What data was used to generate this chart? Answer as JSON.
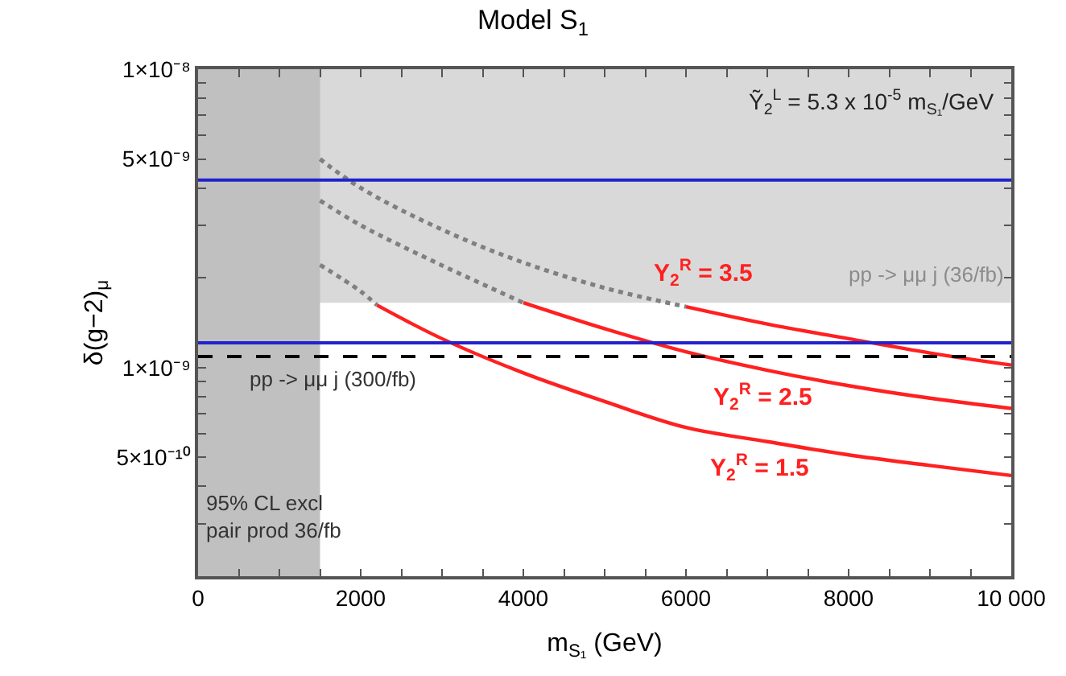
{
  "chart_data": {
    "type": "line",
    "title": "Model S$_{1}$",
    "xlabel": "m$_{S₁}$ (GeV)",
    "ylabel": "δ(g−2)$_{μ}$",
    "log": "y",
    "grid": false,
    "legend": false,
    "marker": "none",
    "xlim": [
      0,
      10000
    ],
    "ylim": [
      2e-10,
      1e-08
    ],
    "xticks": [
      0,
      {
        "value": 500,
        "label": null
      },
      {
        "value": 1000,
        "label": null
      },
      {
        "value": 1500,
        "label": null
      },
      2000,
      {
        "value": 2500,
        "label": null
      },
      {
        "value": 3000,
        "label": null
      },
      {
        "value": 3500,
        "label": null
      },
      4000,
      {
        "value": 4500,
        "label": null
      },
      {
        "value": 5000,
        "label": null
      },
      {
        "value": 5500,
        "label": null
      },
      6000,
      {
        "value": 6500,
        "label": null
      },
      {
        "value": 7000,
        "label": null
      },
      {
        "value": 7500,
        "label": null
      },
      8000,
      {
        "value": 8500,
        "label": null
      },
      {
        "value": 9000,
        "label": null
      },
      {
        "value": 9500,
        "label": null
      },
      {
        "value": 10000,
        "label": "10 000"
      }
    ],
    "yticks": [
      {
        "value": 2e-10,
        "label": null
      },
      {
        "value": 3e-10,
        "label": null
      },
      {
        "value": 4e-10,
        "label": null
      },
      {
        "value": 5e-10,
        "label": "5×10⁻¹⁰"
      },
      {
        "value": 6e-10,
        "label": null
      },
      {
        "value": 7e-10,
        "label": null
      },
      {
        "value": 8e-10,
        "label": null
      },
      {
        "value": 9e-10,
        "label": null
      },
      {
        "value": 1e-09,
        "label": "1×10⁻⁹"
      },
      {
        "value": 2e-09,
        "label": null
      },
      {
        "value": 3e-09,
        "label": null
      },
      {
        "value": 4e-09,
        "label": null
      },
      {
        "value": 5e-09,
        "label": "5×10⁻⁹"
      },
      {
        "value": 6e-09,
        "label": null
      },
      {
        "value": 7e-09,
        "label": null
      },
      {
        "value": 8e-09,
        "label": null
      },
      {
        "value": 9e-09,
        "label": null
      },
      {
        "value": 1e-08,
        "label": "1×10⁻⁸"
      }
    ],
    "bands": [
      {
        "axis": "y",
        "from": 1.65e-09,
        "to": 1e-08,
        "label": "pp -> μμ j (36/fb)",
        "color": "#d9d9d9"
      },
      {
        "axis": "x",
        "from": 0,
        "to": 1500,
        "label": "95% CL excl\npair prod 36/fb",
        "color": "#c0c0c0"
      }
    ],
    "ref_lines": [
      {
        "axis": "y",
        "value": 4.25e-09,
        "label": null,
        "color": "#2222cc",
        "line_style": "solid"
      },
      {
        "axis": "y",
        "value": 1.21e-09,
        "label": null,
        "color": "#2222cc",
        "line_style": "solid"
      },
      {
        "axis": "y",
        "value": 1.09e-09,
        "label": "pp -> μμ j (300/fb)",
        "color": "#000000",
        "line_style": "dashed"
      }
    ],
    "series": [
      {
        "color": "#808080",
        "line_style": "dotted",
        "x": [
          1500,
          2000,
          3000,
          4000,
          5000,
          6000
        ],
        "values": [
          5e-09,
          4e-09,
          2.9e-09,
          2.25e-09,
          1.85e-09,
          1.6e-09
        ]
      },
      {
        "name": "Y$_{2}$$^{R}$ = 3.5",
        "color": "#ff2020",
        "line_style": "solid",
        "x": [
          6000,
          7000,
          8000,
          9000,
          10000
        ],
        "values": [
          1.6e-09,
          1.4e-09,
          1.25e-09,
          1.12e-09,
          1.02e-09
        ]
      },
      {
        "color": "#808080",
        "line_style": "dotted",
        "x": [
          1500,
          2000,
          3000,
          4000
        ],
        "values": [
          3.63e-09,
          3e-09,
          2.2e-09,
          1.65e-09
        ]
      },
      {
        "name": "Y$_{2}$$^{R}$ = 2.5",
        "color": "#ff2020",
        "line_style": "solid",
        "x": [
          4000,
          5000,
          6000,
          7000,
          8000,
          9000,
          10000
        ],
        "values": [
          1.65e-09,
          1.35e-09,
          1.13e-09,
          9.8e-10,
          8.7e-10,
          7.9e-10,
          7.3e-10
        ]
      },
      {
        "color": "#808080",
        "line_style": "dotted",
        "x": [
          1500,
          2000,
          2200
        ],
        "values": [
          2.21e-09,
          1.8e-09,
          1.62e-09
        ]
      },
      {
        "name": "Y$_{2}$$^{R}$ = 1.5",
        "color": "#ff2020",
        "line_style": "solid",
        "x": [
          2200,
          3000,
          4000,
          5000,
          6000,
          7000,
          8000,
          9000,
          10000
        ],
        "values": [
          1.62e-09,
          1.25e-09,
          9.6e-10,
          7.7e-10,
          6.3e-10,
          5.65e-10,
          5.1e-10,
          4.7e-10,
          4.35e-10
        ]
      }
    ],
    "annotations": [
      "Ỹ$_{2}$$^{L}$ = 5.3 x 10$^{-5}$ m$_{S₁}$/GeV"
    ]
  }
}
